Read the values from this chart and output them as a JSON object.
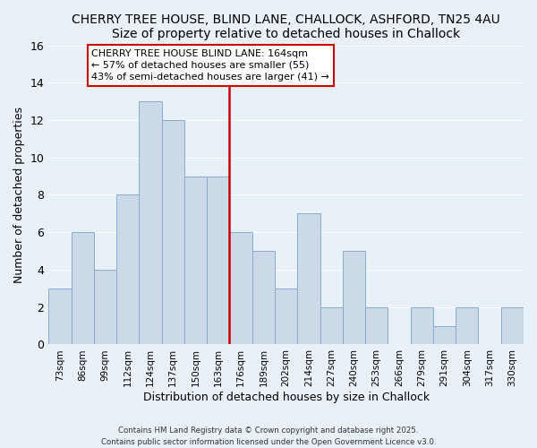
{
  "title": "CHERRY TREE HOUSE, BLIND LANE, CHALLOCK, ASHFORD, TN25 4AU",
  "subtitle": "Size of property relative to detached houses in Challock",
  "xlabel": "Distribution of detached houses by size in Challock",
  "ylabel": "Number of detached properties",
  "bar_labels": [
    "73sqm",
    "86sqm",
    "99sqm",
    "112sqm",
    "124sqm",
    "137sqm",
    "150sqm",
    "163sqm",
    "176sqm",
    "189sqm",
    "202sqm",
    "214sqm",
    "227sqm",
    "240sqm",
    "253sqm",
    "266sqm",
    "279sqm",
    "291sqm",
    "304sqm",
    "317sqm",
    "330sqm"
  ],
  "bar_values": [
    3,
    6,
    4,
    8,
    13,
    12,
    9,
    9,
    6,
    5,
    3,
    7,
    2,
    5,
    2,
    0,
    2,
    1,
    2,
    0,
    2
  ],
  "bar_color": "#ccd9e8",
  "bar_edge_color": "#8aabcc",
  "vline_color": "#cc0000",
  "annotation_text": "CHERRY TREE HOUSE BLIND LANE: 164sqm\n← 57% of detached houses are smaller (55)\n43% of semi-detached houses are larger (41) →",
  "ylim": [
    0,
    16
  ],
  "yticks": [
    0,
    2,
    4,
    6,
    8,
    10,
    12,
    14,
    16
  ],
  "background_color": "#e8f0f8",
  "grid_color": "#ffffff",
  "footer_line1": "Contains HM Land Registry data © Crown copyright and database right 2025.",
  "footer_line2": "Contains public sector information licensed under the Open Government Licence v3.0.",
  "title_fontsize": 10,
  "subtitle_fontsize": 9.5,
  "annotation_fontsize": 8,
  "annotation_box_color": "#cc0000"
}
